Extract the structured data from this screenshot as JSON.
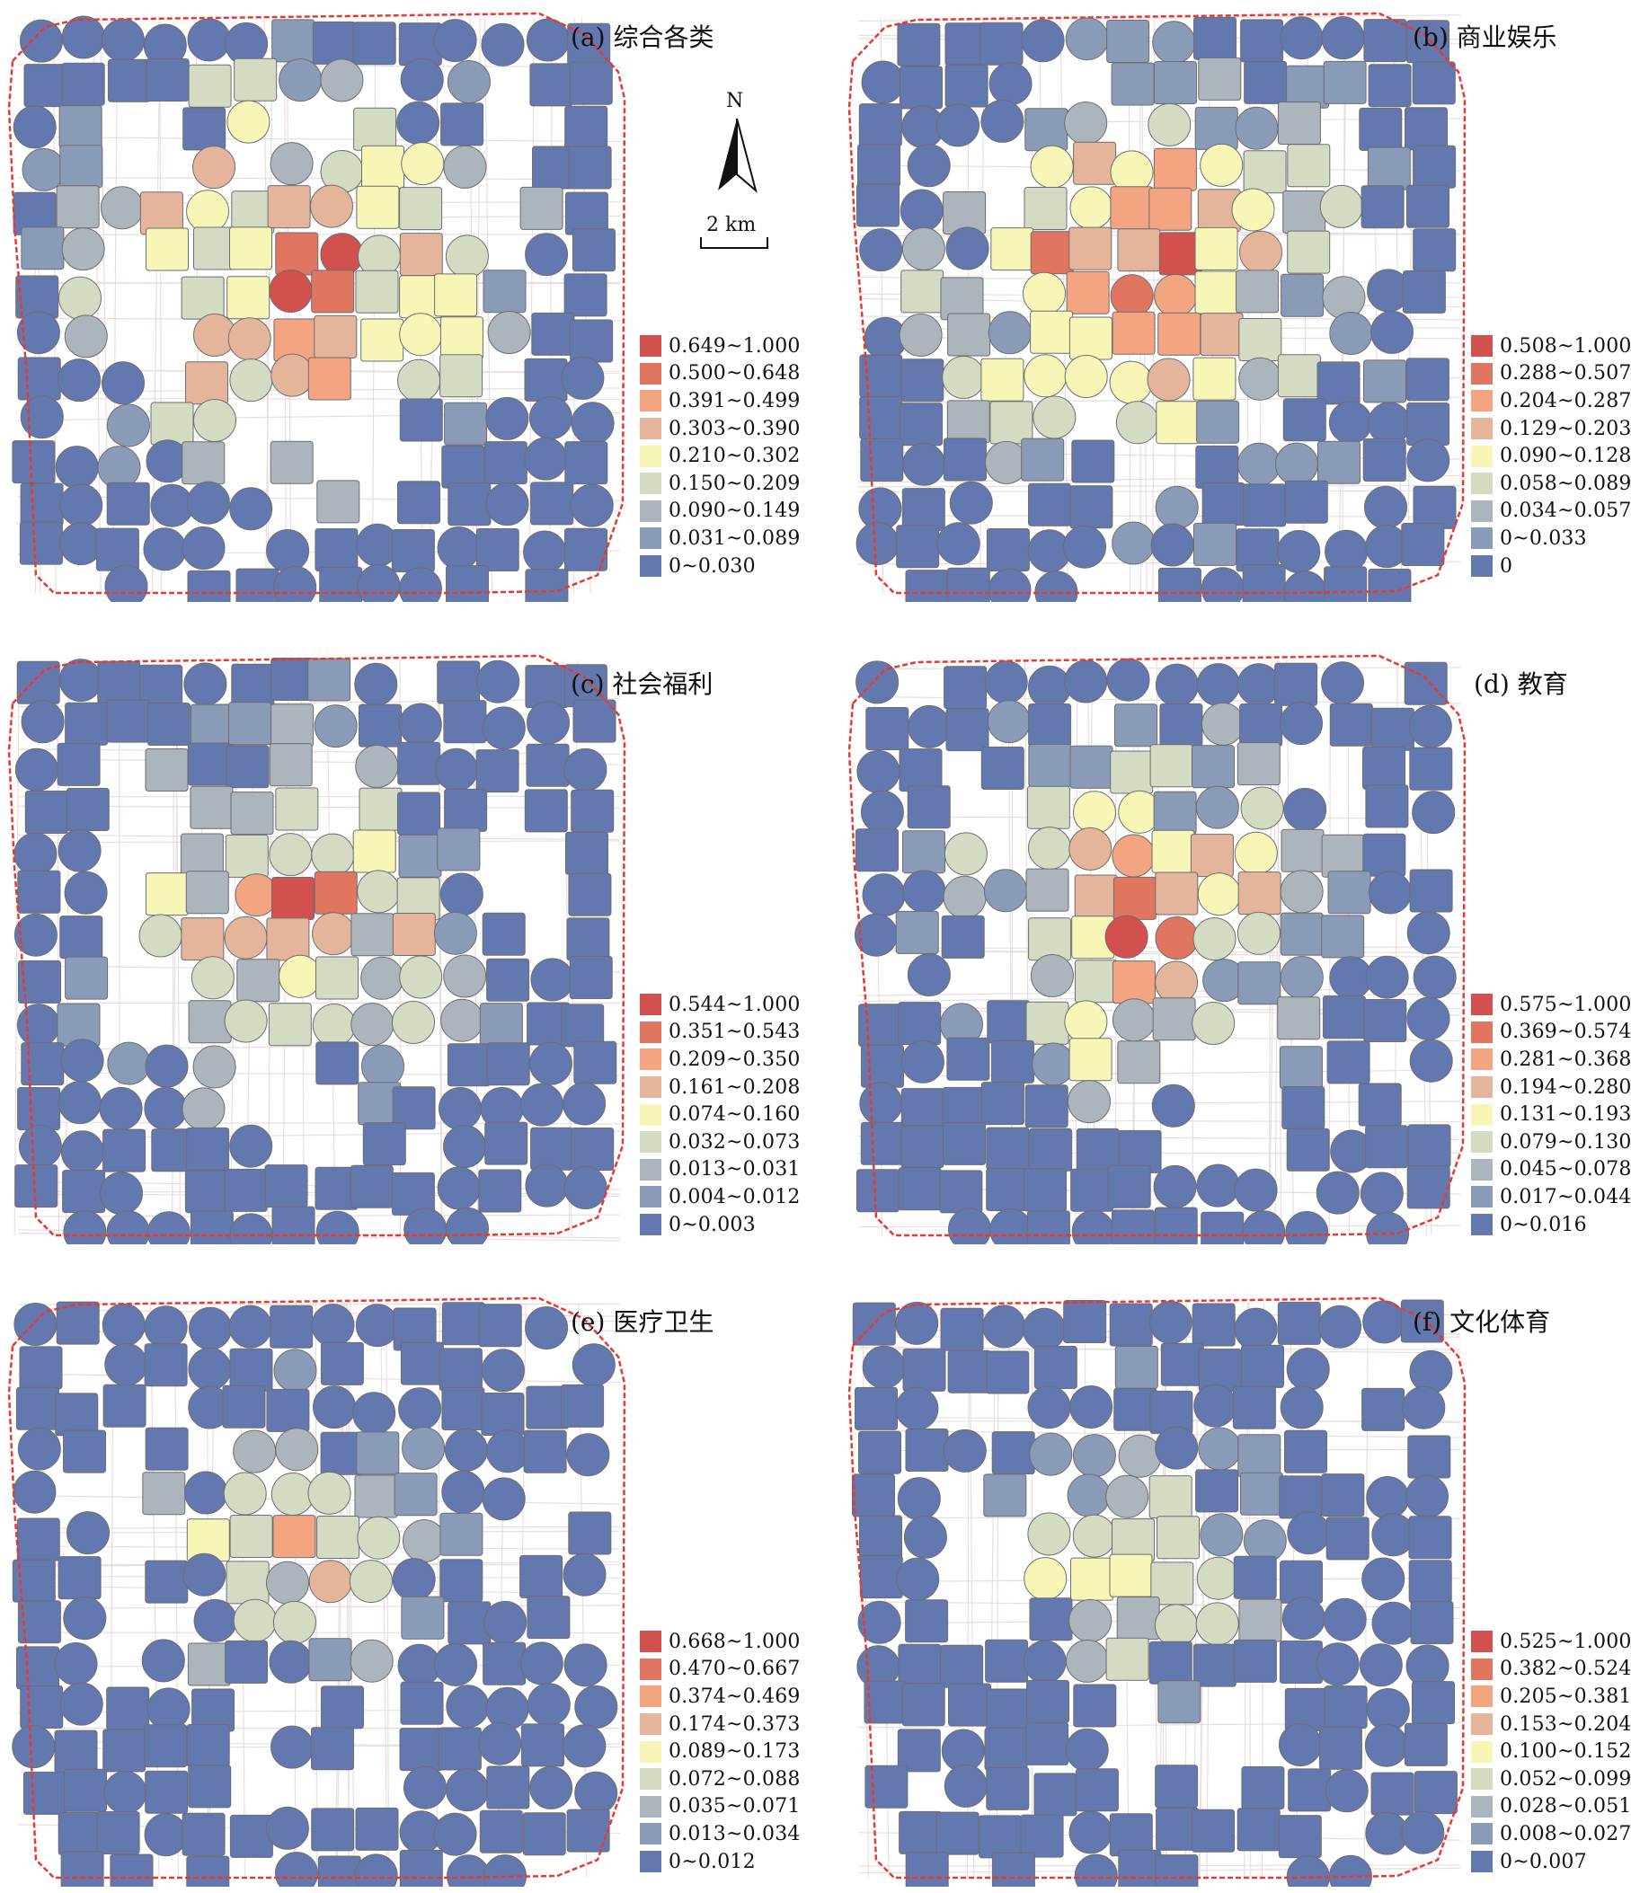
{
  "colors": [
    "#d2504e",
    "#e0765f",
    "#f3a481",
    "#e4b59b",
    "#f8f6b6",
    "#d3dcc2",
    "#acb4bc",
    "#8a9bb8",
    "#6378ae"
  ],
  "boundary_color": "#e53a33",
  "north_label": "N",
  "scale_label": "2 km",
  "panels": [
    {
      "title": "(a) 综合各类",
      "legend": [
        "0.649~1.000",
        "0.500~0.648",
        "0.391~0.499",
        "0.303~0.390",
        "0.210~0.302",
        "0.150~0.209",
        "0.090~0.149",
        "0.031~0.089",
        "0~0.030"
      ]
    },
    {
      "title": "(b) 商业娱乐",
      "legend": [
        "0.508~1.000",
        "0.288~0.507",
        "0.204~0.287",
        "0.129~0.203",
        "0.090~0.128",
        "0.058~0.089",
        "0.034~0.057",
        "0~0.033",
        "0"
      ]
    },
    {
      "title": "(c) 社会福利",
      "legend": [
        "0.544~1.000",
        "0.351~0.543",
        "0.209~0.350",
        "0.161~0.208",
        "0.074~0.160",
        "0.032~0.073",
        "0.013~0.031",
        "0.004~0.012",
        "0~0.003"
      ]
    },
    {
      "title": "(d) 教育",
      "legend": [
        "0.575~1.000",
        "0.369~0.574",
        "0.281~0.368",
        "0.194~0.280",
        "0.131~0.193",
        "0.079~0.130",
        "0.045~0.078",
        "0.017~0.044",
        "0~0.016"
      ]
    },
    {
      "title": "(e) 医疗卫生",
      "legend": [
        "0.668~1.000",
        "0.470~0.667",
        "0.374~0.469",
        "0.174~0.373",
        "0.089~0.173",
        "0.072~0.088",
        "0.035~0.071",
        "0.013~0.034",
        "0~0.012"
      ]
    },
    {
      "title": "(f) 文化体育",
      "legend": [
        "0.525~1.000",
        "0.382~0.524",
        "0.205~0.381",
        "0.153~0.204",
        "0.100~0.152",
        "0.052~0.099",
        "0.028~0.051",
        "0.008~0.027",
        "0~0.007"
      ]
    }
  ]
}
